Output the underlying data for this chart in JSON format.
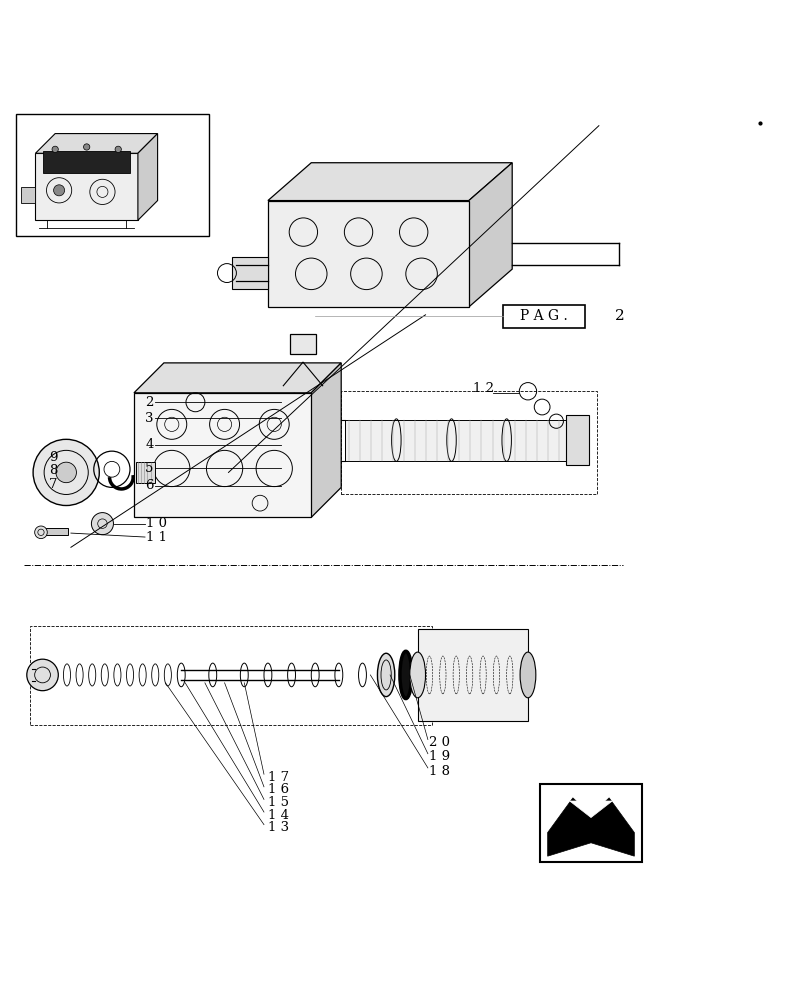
{
  "bg_color": "#ffffff",
  "line_color": "#000000",
  "fig_width": 7.88,
  "fig_height": 10.0,
  "dpi": 100
}
